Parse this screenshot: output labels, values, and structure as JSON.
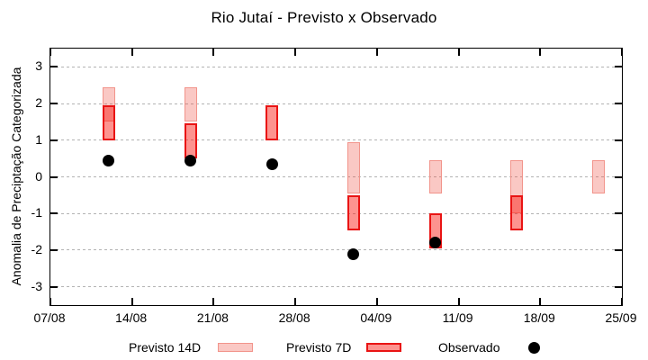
{
  "title": "Rio Jutaí - Previsto x Observado",
  "colors": {
    "previsto_14d_fill": "rgba(240,72,60,0.30)",
    "previsto_14d_border": "#f2948b",
    "previsto_7d_fill": "rgba(250,26,16,0.47)",
    "previsto_7d_border": "#e91414",
    "observado": "#000000",
    "grid": "#b3b3b3",
    "frame": "#000000"
  },
  "legend": {
    "items": [
      {
        "label": "Previsto 14D",
        "swatch": "previsto-14d"
      },
      {
        "label": "Previsto 7D",
        "swatch": "previsto-7d"
      },
      {
        "label": "Observado",
        "swatch": "observado-dot"
      }
    ]
  },
  "chart_data": {
    "type": "bar",
    "title": "Rio Jutaí - Previsto x Observado",
    "xlabel": "",
    "ylabel": "Anomalia de Preciptação Categorizada",
    "ylim": [
      -3.5,
      3.5
    ],
    "yticks": [
      3,
      2,
      1,
      0,
      -1,
      -2,
      -3
    ],
    "xticks": [
      "07/08",
      "14/08",
      "21/08",
      "28/08",
      "04/09",
      "11/09",
      "18/09",
      "25/09"
    ],
    "xtick_day_offsets": [
      0,
      7,
      14,
      21,
      28,
      35,
      42,
      49
    ],
    "grid": true,
    "legend_position": "bottom",
    "series_names": [
      "Previsto 14D",
      "Previsto 7D",
      "Observado"
    ],
    "groups": [
      {
        "date": "12/08",
        "day": 5,
        "previsto_14d": [
          1.5,
          2.45
        ],
        "previsto_7d": [
          1.0,
          1.95
        ],
        "observado": 0.45
      },
      {
        "date": "19/08",
        "day": 12,
        "previsto_14d": [
          1.5,
          2.45
        ],
        "previsto_7d": [
          0.5,
          1.45
        ],
        "observado": 0.45
      },
      {
        "date": "26/08",
        "day": 19,
        "previsto_14d": null,
        "previsto_7d": [
          1.0,
          1.95
        ],
        "observado": 0.35
      },
      {
        "date": "02/09",
        "day": 26,
        "previsto_14d": [
          -0.45,
          0.95
        ],
        "previsto_7d": [
          -1.45,
          -0.5
        ],
        "observado": -2.1
      },
      {
        "date": "09/09",
        "day": 33,
        "previsto_14d": [
          -0.45,
          0.45
        ],
        "previsto_7d": [
          -1.95,
          -1.0
        ],
        "observado": -1.8
      },
      {
        "date": "16/09",
        "day": 40,
        "previsto_14d": [
          -1.0,
          0.45
        ],
        "previsto_7d": [
          -1.45,
          -0.5
        ],
        "observado": null
      },
      {
        "date": "23/09",
        "day": 47,
        "previsto_14d": [
          -0.45,
          0.45
        ],
        "previsto_7d": null,
        "observado": null
      }
    ]
  }
}
